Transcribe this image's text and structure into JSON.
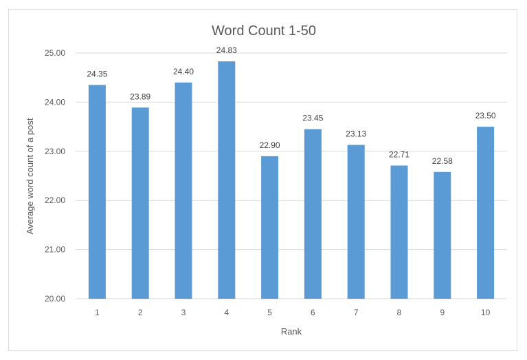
{
  "chart_data": {
    "type": "bar",
    "title": "Word Count 1-50",
    "xlabel": "Rank",
    "ylabel": "Average word count of a post",
    "categories": [
      "1",
      "2",
      "3",
      "4",
      "5",
      "6",
      "7",
      "8",
      "9",
      "10"
    ],
    "values": [
      24.35,
      23.89,
      24.4,
      24.83,
      22.9,
      23.45,
      23.13,
      22.71,
      22.58,
      23.5
    ],
    "data_labels": [
      "24.35",
      "23.89",
      "24.40",
      "24.83",
      "22.90",
      "23.45",
      "23.13",
      "22.71",
      "22.58",
      "23.50"
    ],
    "ylim": [
      20,
      25
    ],
    "yticks": [
      "20.00",
      "21.00",
      "22.00",
      "23.00",
      "24.00",
      "25.00"
    ],
    "grid": true,
    "legend": "none",
    "bar_color": "#5b9bd5",
    "gridline_color": "#d9d9d9"
  }
}
